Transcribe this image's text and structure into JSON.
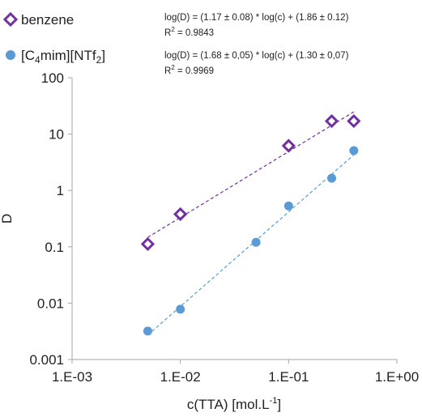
{
  "chart_data": {
    "type": "scatter",
    "xlabel_main": "c(TTA) [mol.L",
    "xlabel_sup": "-1",
    "xlabel_end": "]",
    "ylabel": "D",
    "xscale": "log",
    "yscale": "log",
    "xlim": [
      0.001,
      1
    ],
    "ylim": [
      0.001,
      100
    ],
    "grid": false,
    "legend_position": "top-left",
    "x_tick_labels": [
      "1.E-03",
      "1.E-02",
      "1.E-01",
      "1.E+00"
    ],
    "y_tick_labels": [
      "0.001",
      "0.01",
      "0.1",
      "1",
      "10",
      "100"
    ],
    "series": [
      {
        "legend_text": "benzene",
        "marker": "hollow-diamond",
        "color": "#7030a0",
        "x": [
          0.005,
          0.01,
          0.1,
          0.25,
          0.4
        ],
        "y": [
          0.112,
          0.38,
          6.2,
          17,
          17
        ],
        "fit_slope": 1.17,
        "fit_intercept": 1.86,
        "equation": "log(D) = (1.17 ± 0.08) * log(c) + (1.86 ± 0.12)",
        "r2_label": "R",
        "r2_sup": "2",
        "r2_value": " = 0.9843"
      },
      {
        "legend_text": "[C",
        "legend_sub1": "4",
        "legend_mid": "mim][NTf",
        "legend_sub2": "2",
        "legend_end": "]",
        "marker": "filled-circle",
        "color": "#5b9bd5",
        "x": [
          0.005,
          0.01,
          0.05,
          0.1,
          0.25,
          0.4
        ],
        "y": [
          0.0032,
          0.0078,
          0.12,
          0.53,
          1.65,
          5.1
        ],
        "fit_slope": 1.68,
        "fit_intercept": 1.3,
        "equation": "log(D) = (1.68 ± 0,05) * log(c) + (1.30 ± 0,07)",
        "r2_label": "R",
        "r2_sup": "2",
        "r2_value": " = 0.9969"
      }
    ]
  }
}
